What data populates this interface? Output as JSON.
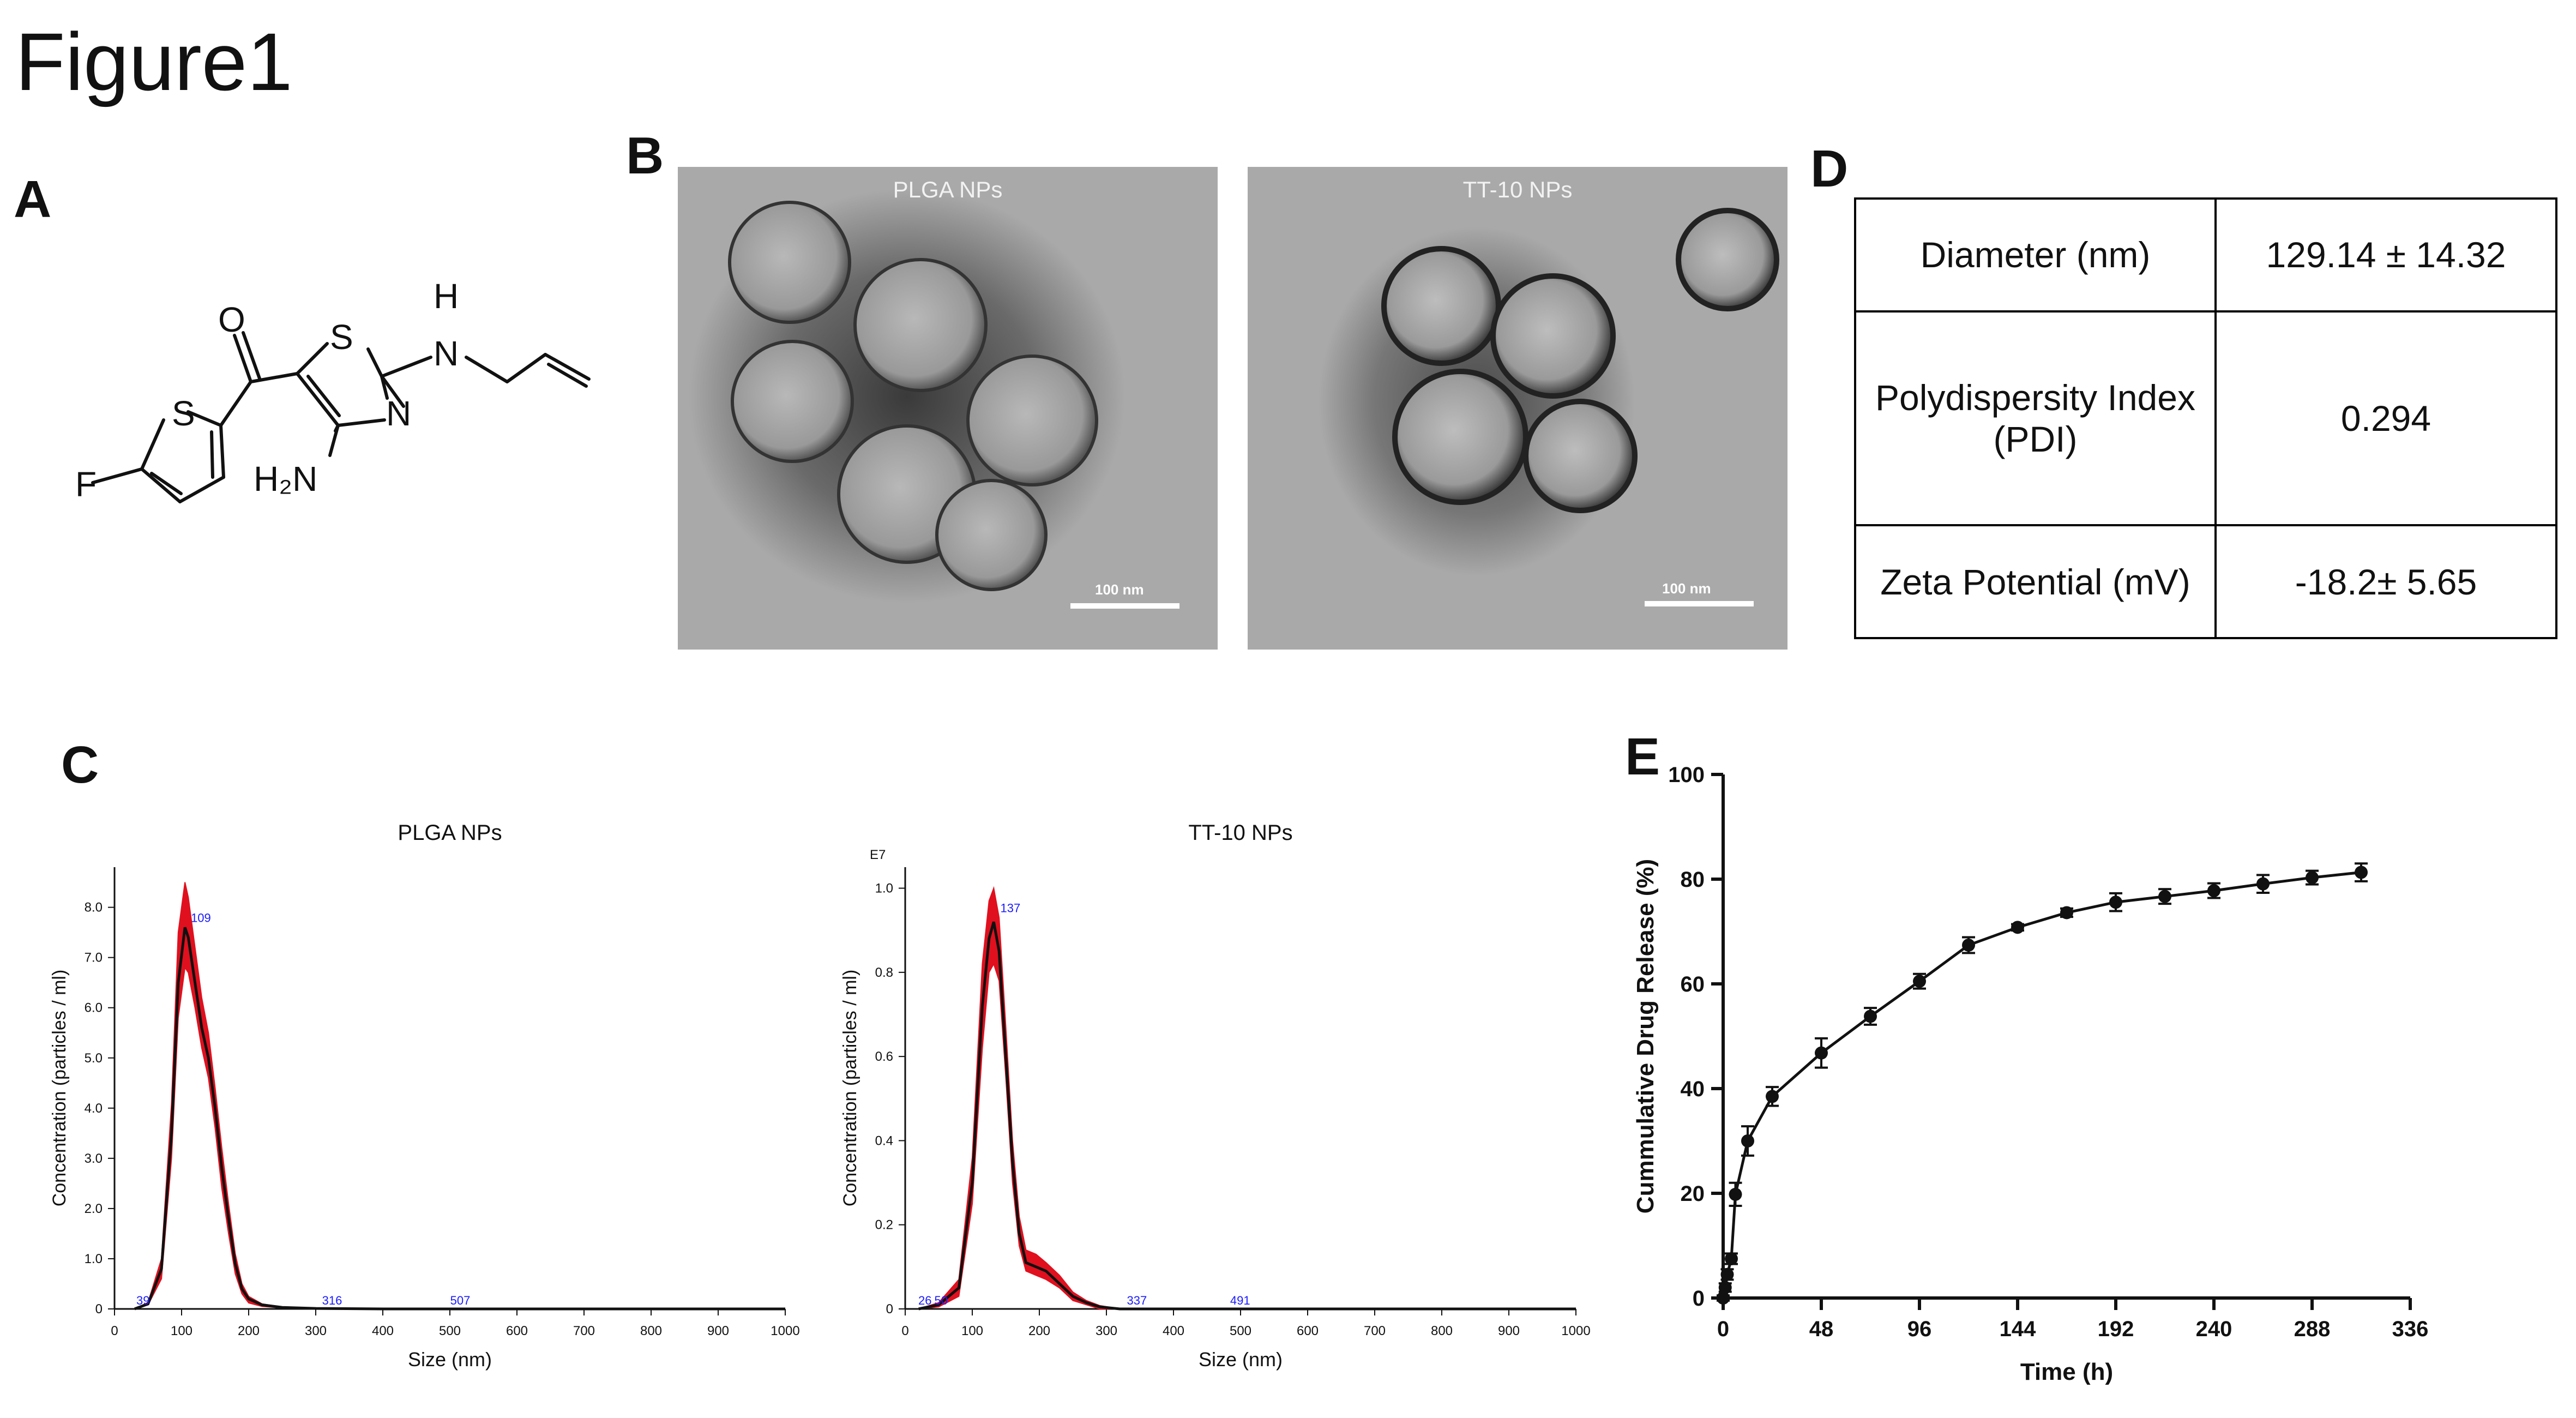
{
  "figure_title": "Figure1",
  "panels": {
    "A": "A",
    "B": "B",
    "C": "C",
    "D": "D",
    "E": "E"
  },
  "structure": {
    "atoms": {
      "O": "O",
      "S1": "S",
      "S2": "S",
      "N_ring": "N",
      "NH_H": "H",
      "NH_N": "N",
      "H2N": "H₂N",
      "F": "F"
    },
    "description_hidden": false
  },
  "tem": {
    "left_label": "PLGA NPs",
    "right_label": "TT-10 NPs",
    "scale_left": "100 nm",
    "scale_right": "100 nm"
  },
  "table": {
    "rows": [
      {
        "label": "Diameter (nm)",
        "value": "129.14 ± 14.32"
      },
      {
        "label": "Polydispersity Index (PDI)",
        "value": "0.294"
      },
      {
        "label": "Zeta Potential (mV)",
        "value": "-18.2± 5.65"
      }
    ]
  },
  "chart_data": [
    {
      "type": "line",
      "title": "PLGA NPs",
      "xlabel": "Size (nm)",
      "ylabel": "Concentration (particles / ml)",
      "xlim": [
        0,
        1000
      ],
      "ylim": [
        0,
        8.8
      ],
      "xticks": [
        0,
        100,
        200,
        300,
        400,
        500,
        600,
        700,
        800,
        900,
        1000
      ],
      "yticks": [
        "0",
        "1.0",
        "2.0",
        "3.0",
        "4.0",
        "5.0",
        "6.0",
        "7.0",
        "8.0"
      ],
      "exponent_label": "",
      "peak_labels": [
        {
          "x": 39,
          "y": 0,
          "text": "39"
        },
        {
          "x": 109,
          "y": 7.6,
          "text": "109"
        },
        {
          "x": 316,
          "y": 0,
          "text": "316"
        },
        {
          "x": 507,
          "y": 0,
          "text": "507"
        }
      ],
      "series": [
        {
          "values_x": [
            30,
            50,
            70,
            85,
            95,
            105,
            110,
            120,
            130,
            140,
            150,
            160,
            170,
            180,
            190,
            200,
            220,
            250,
            300,
            400,
            600,
            1000
          ],
          "values_y": [
            0,
            0.1,
            0.8,
            3.5,
            6.5,
            7.6,
            7.4,
            6.5,
            5.6,
            5.0,
            4.0,
            2.8,
            1.8,
            0.9,
            0.4,
            0.2,
            0.08,
            0.03,
            0.01,
            0,
            0,
            0
          ],
          "band_low": [
            0,
            0.08,
            0.6,
            3.0,
            5.8,
            6.8,
            6.7,
            6.0,
            5.2,
            4.6,
            3.6,
            2.4,
            1.5,
            0.7,
            0.3,
            0.12,
            0.05,
            0.02,
            0,
            0,
            0,
            0
          ],
          "band_high": [
            0,
            0.13,
            1.0,
            4.1,
            7.5,
            8.5,
            8.2,
            7.2,
            6.2,
            5.5,
            4.4,
            3.2,
            2.1,
            1.1,
            0.5,
            0.25,
            0.1,
            0.04,
            0.015,
            0,
            0,
            0
          ]
        }
      ]
    },
    {
      "type": "line",
      "title": "TT-10 NPs",
      "xlabel": "Size (nm)",
      "ylabel": "Concentration (particles / ml)",
      "xlim": [
        0,
        1000
      ],
      "ylim": [
        0,
        1.05
      ],
      "xticks": [
        0,
        100,
        200,
        300,
        400,
        500,
        600,
        700,
        800,
        900,
        1000
      ],
      "yticks": [
        "0",
        "0.2",
        "0.4",
        "0.6",
        "0.8",
        "1.0"
      ],
      "exponent_label": "E7",
      "peak_labels": [
        {
          "x": 26,
          "y": 0,
          "text": "26"
        },
        {
          "x": 50,
          "y": 0,
          "text": "50"
        },
        {
          "x": 137,
          "y": 0.93,
          "text": "137"
        },
        {
          "x": 337,
          "y": 0,
          "text": "337"
        },
        {
          "x": 491,
          "y": 0,
          "text": "491"
        }
      ],
      "series": [
        {
          "values_x": [
            20,
            50,
            80,
            100,
            115,
            125,
            132,
            140,
            150,
            160,
            170,
            180,
            195,
            210,
            230,
            250,
            270,
            290,
            320,
            400,
            600,
            1000
          ],
          "values_y": [
            0,
            0.01,
            0.05,
            0.3,
            0.72,
            0.88,
            0.92,
            0.85,
            0.6,
            0.35,
            0.18,
            0.11,
            0.1,
            0.09,
            0.06,
            0.03,
            0.015,
            0.005,
            0,
            0,
            0,
            0
          ],
          "band_low": [
            0,
            0.005,
            0.03,
            0.25,
            0.62,
            0.8,
            0.82,
            0.78,
            0.55,
            0.3,
            0.15,
            0.09,
            0.08,
            0.07,
            0.05,
            0.02,
            0.01,
            0,
            0,
            0,
            0,
            0
          ],
          "band_high": [
            0,
            0.015,
            0.07,
            0.36,
            0.82,
            0.97,
            1.0,
            0.93,
            0.67,
            0.4,
            0.22,
            0.14,
            0.13,
            0.11,
            0.08,
            0.04,
            0.02,
            0.008,
            0,
            0,
            0,
            0
          ]
        }
      ]
    },
    {
      "type": "line",
      "title": "",
      "xlabel": "Time (h)",
      "ylabel": "Cummulative Drug Release (%)",
      "xlim": [
        0,
        336
      ],
      "ylim": [
        0,
        100
      ],
      "xticks": [
        0,
        48,
        96,
        144,
        192,
        240,
        288,
        336
      ],
      "yticks": [
        0,
        20,
        40,
        60,
        80,
        100
      ],
      "series": [
        {
          "x": [
            0,
            1,
            2,
            4,
            6,
            12,
            24,
            48,
            72,
            96,
            120,
            144,
            168,
            192,
            216,
            240,
            264,
            288,
            312
          ],
          "y": [
            0,
            2,
            4.5,
            7.5,
            19.8,
            30.0,
            38.5,
            46.8,
            53.8,
            60.5,
            67.4,
            70.8,
            73.6,
            75.6,
            76.7,
            77.8,
            79.1,
            80.3,
            81.3
          ],
          "err": [
            0.5,
            0.8,
            1,
            1,
            2.2,
            2.8,
            1.8,
            2.8,
            1.6,
            1.4,
            1.5,
            0.6,
            0.8,
            1.7,
            1.4,
            1.4,
            1.7,
            1.3,
            1.7
          ]
        }
      ]
    }
  ]
}
